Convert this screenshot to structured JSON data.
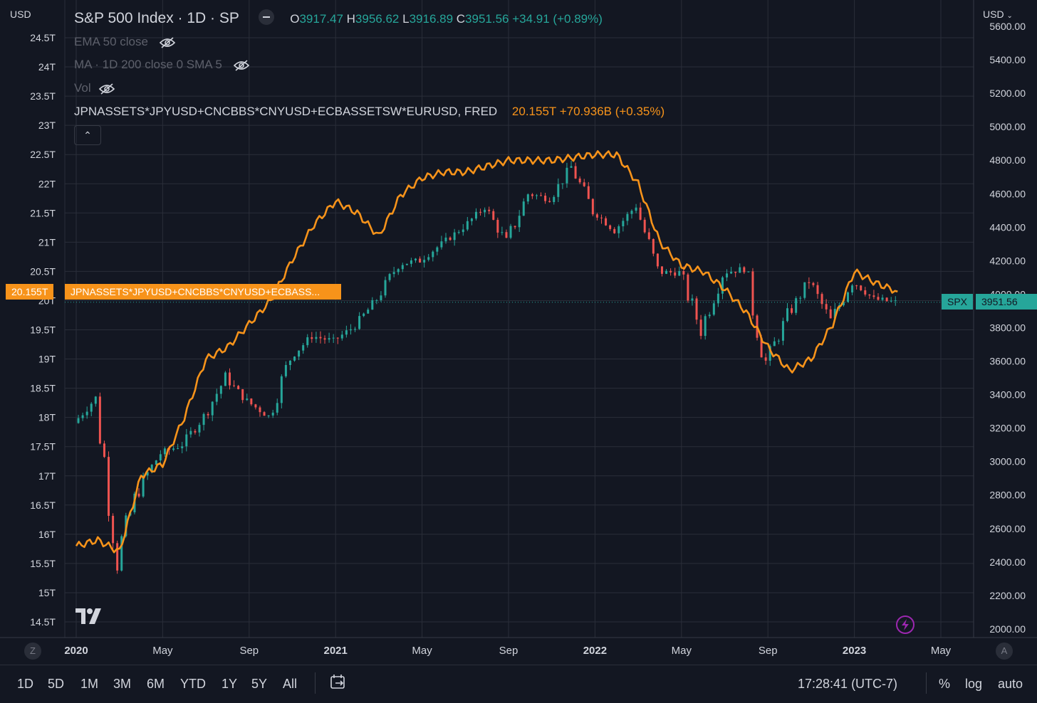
{
  "left_axis": {
    "currency": "USD",
    "ticks": [
      "24.5T",
      "24T",
      "23.5T",
      "23T",
      "22.5T",
      "22T",
      "21.5T",
      "21T",
      "20.5T",
      "20T",
      "19.5T",
      "19T",
      "18.5T",
      "18T",
      "17.5T",
      "17T",
      "16.5T",
      "16T",
      "15.5T",
      "15T",
      "14.5T"
    ],
    "range": [
      14.5,
      24.5
    ]
  },
  "right_axis": {
    "currency": "USD",
    "ticks": [
      "5600.00",
      "5400.00",
      "5200.00",
      "5000.00",
      "4800.00",
      "4600.00",
      "4400.00",
      "4200.00",
      "4000.00",
      "3800.00",
      "3600.00",
      "3400.00",
      "3200.00",
      "3000.00",
      "2800.00",
      "2600.00",
      "2400.00",
      "2200.00",
      "2000.00"
    ]
  },
  "time_axis": {
    "labels": [
      "2020",
      "May",
      "Sep",
      "2021",
      "May",
      "Sep",
      "2022",
      "May",
      "Sep",
      "2023",
      "May"
    ]
  },
  "legend": {
    "title": "S&P 500 Index · 1D · SP",
    "ohlc": {
      "o_label": "O",
      "o": "3917.47",
      "h_label": "H",
      "h": "3956.62",
      "l_label": "L",
      "l": "3916.89",
      "c_label": "C",
      "c": "3951.56",
      "change": "+34.91 (+0.89%)"
    },
    "indicators": [
      "EMA 50 close",
      "MA · 1D 200 close 0 SMA 5",
      "Vol"
    ],
    "compare": {
      "label": "JPNASSETS*JPYUSD+CNCBBS*CNYUSD+ECBASSETSW*EURUSD, FRED",
      "value": "20.155T +70.936B (+0.35%)"
    }
  },
  "price_badges": {
    "left_value": "20.155T",
    "left_name": "JPNASSETS*JPYUSD+CNCBBS*CNYUSD+ECBASS...",
    "right_symbol": "SPX",
    "right_value": "3951.56"
  },
  "toolbar": {
    "timeframes": [
      "1D",
      "5D",
      "1M",
      "3M",
      "6M",
      "YTD",
      "1Y",
      "5Y",
      "All"
    ],
    "clock": "17:28:41 (UTC-7)",
    "percent": "%",
    "log": "log",
    "auto": "auto"
  },
  "axis_corner": {
    "left": "Z",
    "right": "A"
  },
  "colors": {
    "background": "#131722",
    "up": "#26a69a",
    "down": "#ef5350",
    "compare": "#f7931a",
    "grid": "#2a2e39"
  },
  "chart_data": [
    {
      "type": "line",
      "name": "JPNASSETS*JPYUSD+CNCBBS*CNYUSD+ECBASSETSW*EURUSD, FRED",
      "ylim": [
        14.5,
        24.5
      ],
      "x": [
        "2020-01",
        "2020-02",
        "2020-03",
        "2020-04",
        "2020-05",
        "2020-06",
        "2020-07",
        "2020-08",
        "2020-09",
        "2020-10",
        "2020-11",
        "2020-12",
        "2021-01",
        "2021-02",
        "2021-03",
        "2021-04",
        "2021-05",
        "2021-06",
        "2021-07",
        "2021-08",
        "2021-09",
        "2021-10",
        "2021-11",
        "2021-12",
        "2022-01",
        "2022-02",
        "2022-03",
        "2022-04",
        "2022-05",
        "2022-06",
        "2022-07",
        "2022-08",
        "2022-09",
        "2022-10",
        "2022-11",
        "2022-12",
        "2023-01",
        "2023-02",
        "2023-03"
      ],
      "values": [
        15.8,
        15.9,
        15.7,
        17.0,
        17.2,
        18.0,
        19.0,
        19.2,
        19.6,
        20.0,
        20.7,
        21.3,
        21.7,
        21.5,
        21.1,
        21.8,
        22.1,
        22.2,
        22.2,
        22.3,
        22.4,
        22.4,
        22.4,
        22.45,
        22.5,
        22.5,
        22.0,
        21.0,
        20.6,
        20.5,
        20.2,
        19.8,
        19.2,
        18.8,
        19.0,
        19.6,
        20.5,
        20.3,
        20.155
      ]
    },
    {
      "type": "candlestick",
      "name": "SPX",
      "ylim": [
        2000,
        5600
      ],
      "x": [
        "2020-01",
        "2020-02",
        "2020-03",
        "2020-04",
        "2020-05",
        "2020-06",
        "2020-07",
        "2020-08",
        "2020-09",
        "2020-10",
        "2020-11",
        "2020-12",
        "2021-01",
        "2021-02",
        "2021-03",
        "2021-04",
        "2021-05",
        "2021-06",
        "2021-07",
        "2021-08",
        "2021-09",
        "2021-10",
        "2021-11",
        "2021-12",
        "2022-01",
        "2022-02",
        "2022-03",
        "2022-04",
        "2022-05",
        "2022-06",
        "2022-07",
        "2022-08",
        "2022-09",
        "2022-10",
        "2022-11",
        "2022-12",
        "2023-01",
        "2023-02",
        "2023-03"
      ],
      "close": [
        3230,
        3380,
        2450,
        2850,
        3050,
        3100,
        3270,
        3500,
        3360,
        3270,
        3620,
        3750,
        3720,
        3810,
        3970,
        4180,
        4200,
        4300,
        4400,
        4520,
        4310,
        4600,
        4570,
        4760,
        4500,
        4380,
        4530,
        4130,
        4130,
        3790,
        4130,
        4150,
        3590,
        3870,
        4080,
        3840,
        4080,
        3970,
        3951.56
      ]
    }
  ]
}
